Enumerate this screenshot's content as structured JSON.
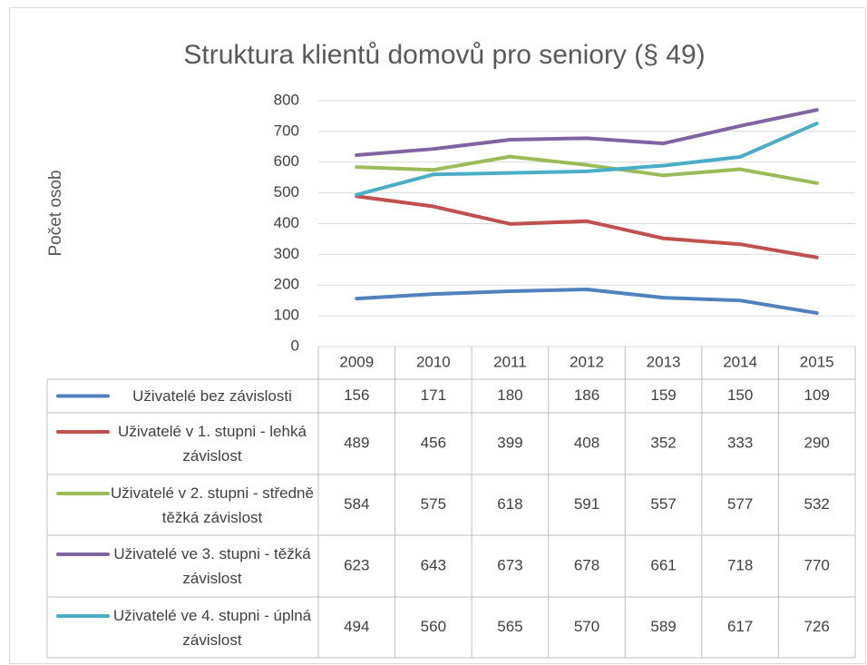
{
  "chart_data": {
    "type": "line",
    "title": "Struktura klientů domovů pro seniory (§ 49)",
    "y_label": "Počet osob",
    "categories": [
      "2009",
      "2010",
      "2011",
      "2012",
      "2013",
      "2014",
      "2015"
    ],
    "ylim": [
      0,
      800
    ],
    "yticks": [
      0,
      100,
      200,
      300,
      400,
      500,
      600,
      700,
      800
    ],
    "grid": true,
    "series": [
      {
        "name": "Uživatelé bez závislosti",
        "color": "#4f81bd",
        "values": [
          156,
          171,
          180,
          186,
          159,
          150,
          109
        ]
      },
      {
        "name": "Uživatelé v 1. stupni - lehká závislost",
        "color": "#c0504d",
        "values": [
          489,
          456,
          399,
          408,
          352,
          333,
          290
        ]
      },
      {
        "name": "Uživatelé v 2. stupni - středně těžká závislost",
        "color": "#9bbb59",
        "values": [
          584,
          575,
          618,
          591,
          557,
          577,
          532
        ]
      },
      {
        "name": "Uživatelé ve 3. stupni - těžká závislost",
        "color": "#8064a2",
        "values": [
          623,
          643,
          673,
          678,
          661,
          718,
          770
        ]
      },
      {
        "name": "Uživatelé ve 4. stupni - úplná závislost",
        "color": "#4bacc6",
        "values": [
          494,
          560,
          565,
          570,
          589,
          617,
          726
        ]
      }
    ]
  }
}
